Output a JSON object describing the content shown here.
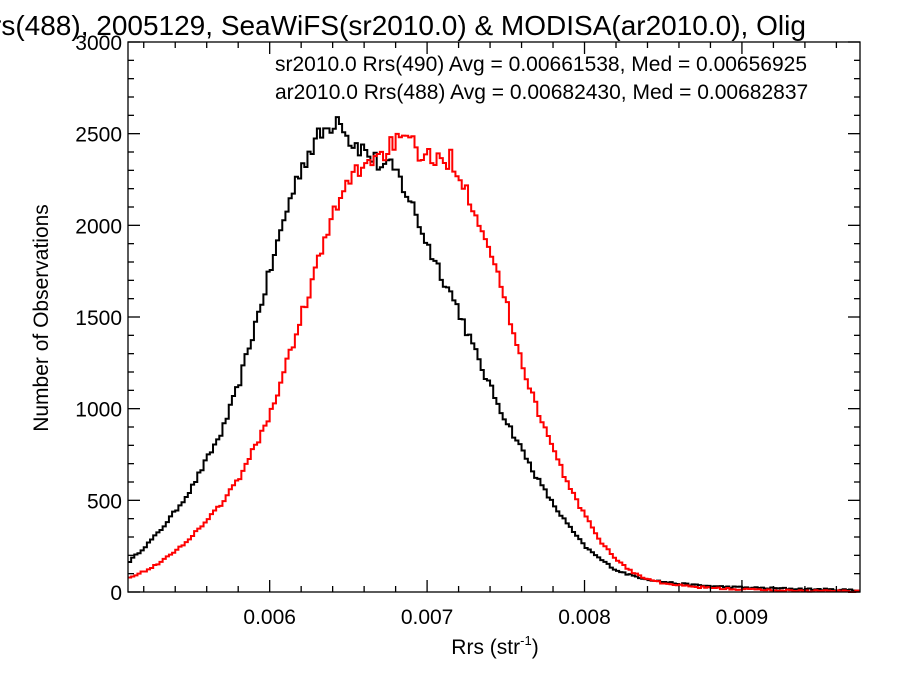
{
  "chart_data": {
    "type": "line",
    "title": "rs(488), 2005129, SeaWiFS(sr2010.0) & MODISA(ar2010.0), Olig",
    "xlabel_main": "Rrs (str",
    "xlabel_sup": "-1",
    "xlabel_tail": ")",
    "ylabel": "Number of Observations",
    "xlim": [
      0.0051,
      0.00975
    ],
    "ylim": [
      0,
      3000
    ],
    "x_ticks": [
      0.006,
      0.007,
      0.008,
      0.009
    ],
    "x_tick_labels": [
      "0.006",
      "0.007",
      "0.008",
      "0.009"
    ],
    "y_ticks": [
      0,
      500,
      1000,
      1500,
      2000,
      2500,
      3000
    ],
    "y_tick_labels": [
      "0",
      "500",
      "1000",
      "1500",
      "2000",
      "2500",
      "3000"
    ],
    "grid": false,
    "legend_position": "top-right",
    "series": [
      {
        "name": "sr2010.0 Rrs(490) Avg = 0.00661538, Med = 0.00656925",
        "color": "#000000",
        "step": "histogram",
        "points": [
          [
            0.0051,
            160
          ],
          [
            0.0052,
            240
          ],
          [
            0.0053,
            330
          ],
          [
            0.0054,
            440
          ],
          [
            0.0055,
            560
          ],
          [
            0.0056,
            720
          ],
          [
            0.0057,
            880
          ],
          [
            0.0058,
            1120
          ],
          [
            0.0059,
            1430
          ],
          [
            0.006,
            1740
          ],
          [
            0.0061,
            2060
          ],
          [
            0.0062,
            2320
          ],
          [
            0.0063,
            2470
          ],
          [
            0.0064,
            2560
          ],
          [
            0.00645,
            2600
          ],
          [
            0.0065,
            2470
          ],
          [
            0.0066,
            2410
          ],
          [
            0.0067,
            2330
          ],
          [
            0.0068,
            2300
          ],
          [
            0.0069,
            2120
          ],
          [
            0.007,
            1900
          ],
          [
            0.0071,
            1720
          ],
          [
            0.0072,
            1540
          ],
          [
            0.0073,
            1320
          ],
          [
            0.0074,
            1120
          ],
          [
            0.0075,
            940
          ],
          [
            0.0076,
            780
          ],
          [
            0.0077,
            620
          ],
          [
            0.0078,
            480
          ],
          [
            0.0079,
            360
          ],
          [
            0.008,
            250
          ],
          [
            0.0081,
            180
          ],
          [
            0.0082,
            120
          ],
          [
            0.0083,
            90
          ],
          [
            0.0084,
            70
          ],
          [
            0.0085,
            55
          ],
          [
            0.0086,
            45
          ],
          [
            0.0087,
            38
          ],
          [
            0.0088,
            32
          ],
          [
            0.0089,
            28
          ],
          [
            0.009,
            25
          ],
          [
            0.0091,
            22
          ],
          [
            0.0092,
            20
          ],
          [
            0.0093,
            18
          ],
          [
            0.0094,
            16
          ],
          [
            0.0095,
            14
          ],
          [
            0.0096,
            12
          ],
          [
            0.0097,
            10
          ]
        ]
      },
      {
        "name": "ar2010.0 Rrs(488) Avg = 0.00682430, Med = 0.00682837",
        "color": "#ff0000",
        "step": "histogram",
        "points": [
          [
            0.0051,
            80
          ],
          [
            0.0052,
            110
          ],
          [
            0.0053,
            160
          ],
          [
            0.0054,
            220
          ],
          [
            0.0055,
            300
          ],
          [
            0.0056,
            390
          ],
          [
            0.0057,
            490
          ],
          [
            0.0058,
            610
          ],
          [
            0.0059,
            780
          ],
          [
            0.006,
            960
          ],
          [
            0.0061,
            1220
          ],
          [
            0.0062,
            1500
          ],
          [
            0.0063,
            1780
          ],
          [
            0.0064,
            2040
          ],
          [
            0.0065,
            2240
          ],
          [
            0.0066,
            2340
          ],
          [
            0.0067,
            2380
          ],
          [
            0.0068,
            2460
          ],
          [
            0.0069,
            2440
          ],
          [
            0.007,
            2370
          ],
          [
            0.0071,
            2330
          ],
          [
            0.00715,
            2380
          ],
          [
            0.0072,
            2290
          ],
          [
            0.0073,
            2100
          ],
          [
            0.0074,
            1880
          ],
          [
            0.0075,
            1580
          ],
          [
            0.0076,
            1260
          ],
          [
            0.0077,
            1000
          ],
          [
            0.0078,
            780
          ],
          [
            0.0079,
            580
          ],
          [
            0.008,
            420
          ],
          [
            0.0081,
            280
          ],
          [
            0.0082,
            180
          ],
          [
            0.0083,
            110
          ],
          [
            0.0084,
            70
          ],
          [
            0.0085,
            48
          ],
          [
            0.0086,
            36
          ],
          [
            0.0087,
            28
          ],
          [
            0.0088,
            22
          ],
          [
            0.0089,
            18
          ],
          [
            0.009,
            15
          ],
          [
            0.0091,
            12
          ],
          [
            0.0092,
            10
          ],
          [
            0.0093,
            8
          ],
          [
            0.0094,
            7
          ],
          [
            0.0095,
            6
          ],
          [
            0.0096,
            5
          ],
          [
            0.0097,
            4
          ]
        ]
      }
    ]
  }
}
